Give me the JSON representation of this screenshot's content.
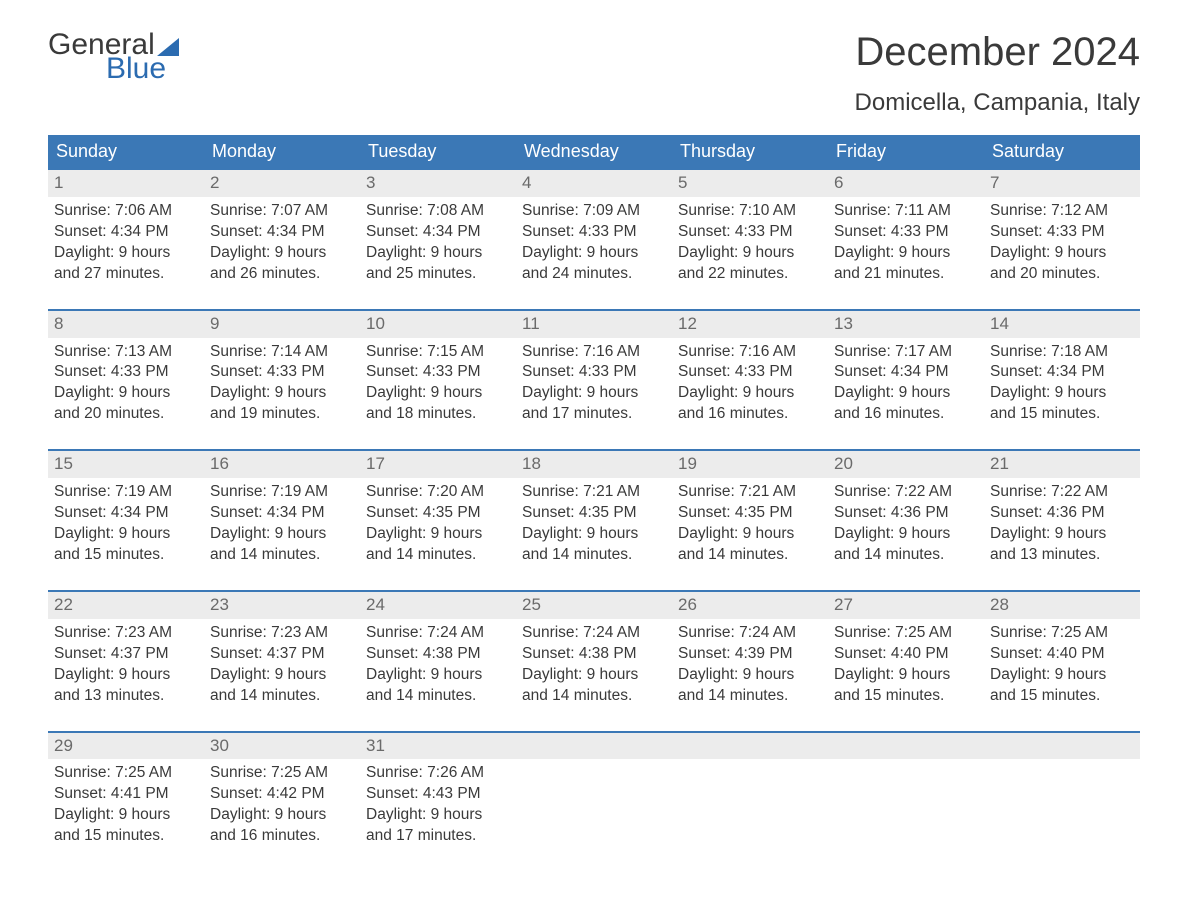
{
  "brand": {
    "word1": "General",
    "word2": "Blue",
    "accent_color": "#2b6bb0"
  },
  "title": "December 2024",
  "location": "Domicella, Campania, Italy",
  "colors": {
    "header_bg": "#3b78b6",
    "header_text": "#ffffff",
    "daynum_bg": "#ececec",
    "daynum_text": "#6a6a6a",
    "body_text": "#3a3a3a",
    "background": "#ffffff",
    "week_border": "#3b78b6"
  },
  "type": "table",
  "day_labels": [
    "Sunday",
    "Monday",
    "Tuesday",
    "Wednesday",
    "Thursday",
    "Friday",
    "Saturday"
  ],
  "weeks": [
    [
      {
        "n": "1",
        "sr": "Sunrise: 7:06 AM",
        "ss": "Sunset: 4:34 PM",
        "d1": "Daylight: 9 hours",
        "d2": "and 27 minutes."
      },
      {
        "n": "2",
        "sr": "Sunrise: 7:07 AM",
        "ss": "Sunset: 4:34 PM",
        "d1": "Daylight: 9 hours",
        "d2": "and 26 minutes."
      },
      {
        "n": "3",
        "sr": "Sunrise: 7:08 AM",
        "ss": "Sunset: 4:34 PM",
        "d1": "Daylight: 9 hours",
        "d2": "and 25 minutes."
      },
      {
        "n": "4",
        "sr": "Sunrise: 7:09 AM",
        "ss": "Sunset: 4:33 PM",
        "d1": "Daylight: 9 hours",
        "d2": "and 24 minutes."
      },
      {
        "n": "5",
        "sr": "Sunrise: 7:10 AM",
        "ss": "Sunset: 4:33 PM",
        "d1": "Daylight: 9 hours",
        "d2": "and 22 minutes."
      },
      {
        "n": "6",
        "sr": "Sunrise: 7:11 AM",
        "ss": "Sunset: 4:33 PM",
        "d1": "Daylight: 9 hours",
        "d2": "and 21 minutes."
      },
      {
        "n": "7",
        "sr": "Sunrise: 7:12 AM",
        "ss": "Sunset: 4:33 PM",
        "d1": "Daylight: 9 hours",
        "d2": "and 20 minutes."
      }
    ],
    [
      {
        "n": "8",
        "sr": "Sunrise: 7:13 AM",
        "ss": "Sunset: 4:33 PM",
        "d1": "Daylight: 9 hours",
        "d2": "and 20 minutes."
      },
      {
        "n": "9",
        "sr": "Sunrise: 7:14 AM",
        "ss": "Sunset: 4:33 PM",
        "d1": "Daylight: 9 hours",
        "d2": "and 19 minutes."
      },
      {
        "n": "10",
        "sr": "Sunrise: 7:15 AM",
        "ss": "Sunset: 4:33 PM",
        "d1": "Daylight: 9 hours",
        "d2": "and 18 minutes."
      },
      {
        "n": "11",
        "sr": "Sunrise: 7:16 AM",
        "ss": "Sunset: 4:33 PM",
        "d1": "Daylight: 9 hours",
        "d2": "and 17 minutes."
      },
      {
        "n": "12",
        "sr": "Sunrise: 7:16 AM",
        "ss": "Sunset: 4:33 PM",
        "d1": "Daylight: 9 hours",
        "d2": "and 16 minutes."
      },
      {
        "n": "13",
        "sr": "Sunrise: 7:17 AM",
        "ss": "Sunset: 4:34 PM",
        "d1": "Daylight: 9 hours",
        "d2": "and 16 minutes."
      },
      {
        "n": "14",
        "sr": "Sunrise: 7:18 AM",
        "ss": "Sunset: 4:34 PM",
        "d1": "Daylight: 9 hours",
        "d2": "and 15 minutes."
      }
    ],
    [
      {
        "n": "15",
        "sr": "Sunrise: 7:19 AM",
        "ss": "Sunset: 4:34 PM",
        "d1": "Daylight: 9 hours",
        "d2": "and 15 minutes."
      },
      {
        "n": "16",
        "sr": "Sunrise: 7:19 AM",
        "ss": "Sunset: 4:34 PM",
        "d1": "Daylight: 9 hours",
        "d2": "and 14 minutes."
      },
      {
        "n": "17",
        "sr": "Sunrise: 7:20 AM",
        "ss": "Sunset: 4:35 PM",
        "d1": "Daylight: 9 hours",
        "d2": "and 14 minutes."
      },
      {
        "n": "18",
        "sr": "Sunrise: 7:21 AM",
        "ss": "Sunset: 4:35 PM",
        "d1": "Daylight: 9 hours",
        "d2": "and 14 minutes."
      },
      {
        "n": "19",
        "sr": "Sunrise: 7:21 AM",
        "ss": "Sunset: 4:35 PM",
        "d1": "Daylight: 9 hours",
        "d2": "and 14 minutes."
      },
      {
        "n": "20",
        "sr": "Sunrise: 7:22 AM",
        "ss": "Sunset: 4:36 PM",
        "d1": "Daylight: 9 hours",
        "d2": "and 14 minutes."
      },
      {
        "n": "21",
        "sr": "Sunrise: 7:22 AM",
        "ss": "Sunset: 4:36 PM",
        "d1": "Daylight: 9 hours",
        "d2": "and 13 minutes."
      }
    ],
    [
      {
        "n": "22",
        "sr": "Sunrise: 7:23 AM",
        "ss": "Sunset: 4:37 PM",
        "d1": "Daylight: 9 hours",
        "d2": "and 13 minutes."
      },
      {
        "n": "23",
        "sr": "Sunrise: 7:23 AM",
        "ss": "Sunset: 4:37 PM",
        "d1": "Daylight: 9 hours",
        "d2": "and 14 minutes."
      },
      {
        "n": "24",
        "sr": "Sunrise: 7:24 AM",
        "ss": "Sunset: 4:38 PM",
        "d1": "Daylight: 9 hours",
        "d2": "and 14 minutes."
      },
      {
        "n": "25",
        "sr": "Sunrise: 7:24 AM",
        "ss": "Sunset: 4:38 PM",
        "d1": "Daylight: 9 hours",
        "d2": "and 14 minutes."
      },
      {
        "n": "26",
        "sr": "Sunrise: 7:24 AM",
        "ss": "Sunset: 4:39 PM",
        "d1": "Daylight: 9 hours",
        "d2": "and 14 minutes."
      },
      {
        "n": "27",
        "sr": "Sunrise: 7:25 AM",
        "ss": "Sunset: 4:40 PM",
        "d1": "Daylight: 9 hours",
        "d2": "and 15 minutes."
      },
      {
        "n": "28",
        "sr": "Sunrise: 7:25 AM",
        "ss": "Sunset: 4:40 PM",
        "d1": "Daylight: 9 hours",
        "d2": "and 15 minutes."
      }
    ],
    [
      {
        "n": "29",
        "sr": "Sunrise: 7:25 AM",
        "ss": "Sunset: 4:41 PM",
        "d1": "Daylight: 9 hours",
        "d2": "and 15 minutes."
      },
      {
        "n": "30",
        "sr": "Sunrise: 7:25 AM",
        "ss": "Sunset: 4:42 PM",
        "d1": "Daylight: 9 hours",
        "d2": "and 16 minutes."
      },
      {
        "n": "31",
        "sr": "Sunrise: 7:26 AM",
        "ss": "Sunset: 4:43 PM",
        "d1": "Daylight: 9 hours",
        "d2": "and 17 minutes."
      },
      {
        "empty": true
      },
      {
        "empty": true
      },
      {
        "empty": true
      },
      {
        "empty": true
      }
    ]
  ]
}
